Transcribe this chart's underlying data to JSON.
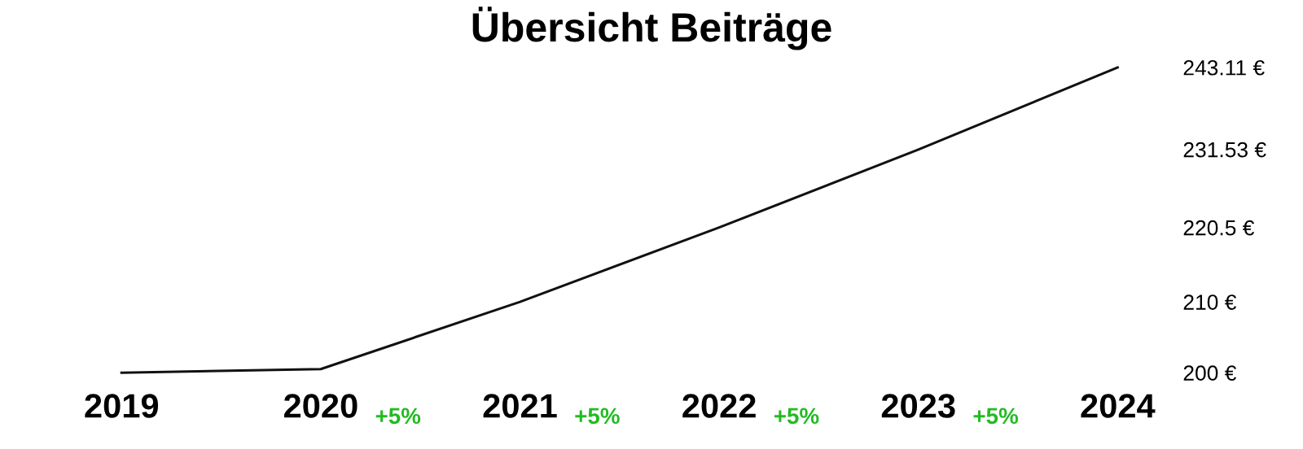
{
  "chart_data": {
    "type": "line",
    "title": "Übersicht Beiträge",
    "categories": [
      "2019",
      "2020",
      "2021",
      "2022",
      "2023",
      "2024"
    ],
    "series": [
      {
        "color": "#111111",
        "values": [
          200,
          200.5,
          210,
          220.5,
          231.5,
          243.1
        ]
      }
    ],
    "ylim": [
      200,
      243.11
    ],
    "yticks": [
      {
        "value": 200,
        "label": "200 €"
      },
      {
        "value": 210,
        "label": "210 €"
      },
      {
        "value": 220.5,
        "label": "220.5 €"
      },
      {
        "value": 231.53,
        "label": "231.53 €"
      },
      {
        "value": 243.11,
        "label": "243.11 €"
      }
    ],
    "annotations": [
      "+5%",
      "+5%",
      "+5%",
      "+5%"
    ],
    "grid": false,
    "legend": false,
    "marker": "none",
    "line_style": "solid"
  }
}
